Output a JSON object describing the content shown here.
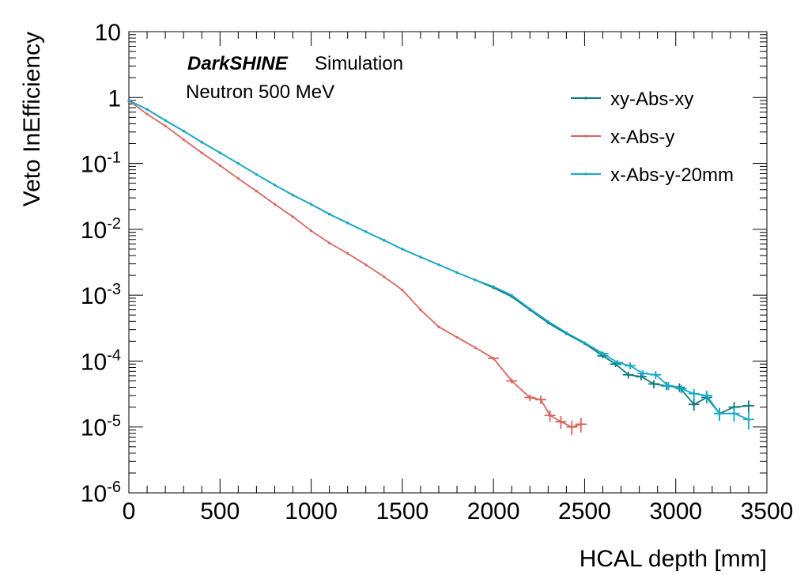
{
  "chart_data": {
    "type": "line",
    "xlabel": "HCAL depth [mm]",
    "ylabel": "Veto InEfficiency",
    "xlim": [
      0,
      3500
    ],
    "ylim": [
      1e-06,
      10
    ],
    "yscale": "log",
    "x_ticks": [
      "0",
      "500",
      "1000",
      "1500",
      "2000",
      "2500",
      "3000",
      "3500"
    ],
    "y_ticks": [
      {
        "base": "10",
        "exp": "-6",
        "value": 1e-06
      },
      {
        "base": "10",
        "exp": "-5",
        "value": 1e-05
      },
      {
        "base": "10",
        "exp": "-4",
        "value": 0.0001
      },
      {
        "base": "10",
        "exp": "-3",
        "value": 0.001
      },
      {
        "base": "10",
        "exp": "-2",
        "value": 0.01
      },
      {
        "base": "10",
        "exp": "-1",
        "value": 0.1
      },
      {
        "base": "1",
        "exp": "",
        "value": 1
      },
      {
        "base": "10",
        "exp": "",
        "value": 10
      }
    ],
    "grid": false,
    "legend_position": "top-right",
    "annotations": {
      "experiment": "DarkSHINE",
      "status": "Simulation",
      "process": "Neutron 500 MeV"
    },
    "series": [
      {
        "name": "xy-Abs-xy",
        "color": "#0e7c7b",
        "x": [
          0,
          100,
          200,
          300,
          400,
          500,
          600,
          700,
          800,
          900,
          1000,
          1100,
          1200,
          1300,
          1400,
          1500,
          1600,
          1700,
          1800,
          1900,
          2000,
          2100,
          2200,
          2300,
          2400,
          2500,
          2600,
          2670,
          2740,
          2810,
          2880,
          2950,
          3020,
          3100,
          3170,
          3240,
          3320,
          3400
        ],
        "y": [
          0.9,
          0.66,
          0.45,
          0.31,
          0.21,
          0.145,
          0.1,
          0.068,
          0.047,
          0.033,
          0.024,
          0.017,
          0.0125,
          0.0092,
          0.0068,
          0.005,
          0.0038,
          0.0029,
          0.0022,
          0.0017,
          0.0013,
          0.00095,
          0.0006,
          0.00038,
          0.00026,
          0.000185,
          0.00012,
          9e-05,
          6.2e-05,
          5.8e-05,
          4.5e-05,
          4.2e-05,
          4e-05,
          2.2e-05,
          2.8e-05,
          1.6e-05,
          2e-05,
          2.1e-05
        ],
        "yerr_rel": [
          0,
          0,
          0,
          0,
          0,
          0,
          0,
          0,
          0,
          0,
          0,
          0,
          0,
          0,
          0,
          0,
          0,
          0,
          0,
          0,
          0,
          0,
          0,
          0,
          0,
          0,
          0.08,
          0.1,
          0.12,
          0.12,
          0.14,
          0.14,
          0.15,
          0.2,
          0.18,
          0.22,
          0.2,
          0.2
        ]
      },
      {
        "name": "x-Abs-y",
        "color": "#d9665f",
        "x": [
          0,
          100,
          200,
          300,
          400,
          500,
          600,
          700,
          800,
          900,
          1000,
          1100,
          1200,
          1300,
          1400,
          1500,
          1600,
          1700,
          1800,
          1900,
          2000,
          2100,
          2200,
          2260,
          2310,
          2370,
          2430,
          2480
        ],
        "y": [
          0.9,
          0.56,
          0.37,
          0.23,
          0.145,
          0.093,
          0.059,
          0.038,
          0.024,
          0.0155,
          0.0095,
          0.0062,
          0.0043,
          0.0029,
          0.0019,
          0.0012,
          0.0006,
          0.00033,
          0.00023,
          0.00016,
          0.00011,
          5e-05,
          2.8e-05,
          2.6e-05,
          1.5e-05,
          1.2e-05,
          1e-05,
          1.1e-05
        ],
        "yerr_rel": [
          0,
          0,
          0,
          0,
          0,
          0,
          0,
          0,
          0,
          0,
          0,
          0,
          0,
          0,
          0,
          0,
          0,
          0,
          0,
          0,
          0.05,
          0.08,
          0.12,
          0.15,
          0.2,
          0.22,
          0.25,
          0.25
        ]
      },
      {
        "name": "x-Abs-y-20mm",
        "color": "#17a9c9",
        "x": [
          0,
          100,
          200,
          300,
          400,
          500,
          600,
          700,
          800,
          900,
          1000,
          1100,
          1200,
          1300,
          1400,
          1500,
          1600,
          1700,
          1800,
          1900,
          2000,
          2100,
          2200,
          2300,
          2400,
          2500,
          2600,
          2680,
          2750,
          2820,
          2890,
          2960,
          3030,
          3100,
          3170,
          3240,
          3320,
          3400
        ],
        "y": [
          0.9,
          0.66,
          0.45,
          0.31,
          0.21,
          0.145,
          0.1,
          0.068,
          0.047,
          0.033,
          0.024,
          0.017,
          0.0125,
          0.0092,
          0.0068,
          0.005,
          0.0038,
          0.0029,
          0.0022,
          0.0017,
          0.00135,
          0.001,
          0.00062,
          0.0004,
          0.00027,
          0.00019,
          0.00013,
          9.5e-05,
          8.5e-05,
          6.5e-05,
          6.2e-05,
          4.2e-05,
          3.8e-05,
          3.2e-05,
          3e-05,
          1.6e-05,
          1.6e-05,
          1.3e-05
        ],
        "yerr_rel": [
          0,
          0,
          0,
          0,
          0,
          0,
          0,
          0,
          0,
          0,
          0,
          0,
          0,
          0,
          0,
          0,
          0,
          0,
          0,
          0,
          0,
          0,
          0,
          0,
          0,
          0,
          0.08,
          0.1,
          0.12,
          0.12,
          0.14,
          0.14,
          0.15,
          0.18,
          0.18,
          0.22,
          0.25,
          0.3
        ]
      }
    ]
  }
}
